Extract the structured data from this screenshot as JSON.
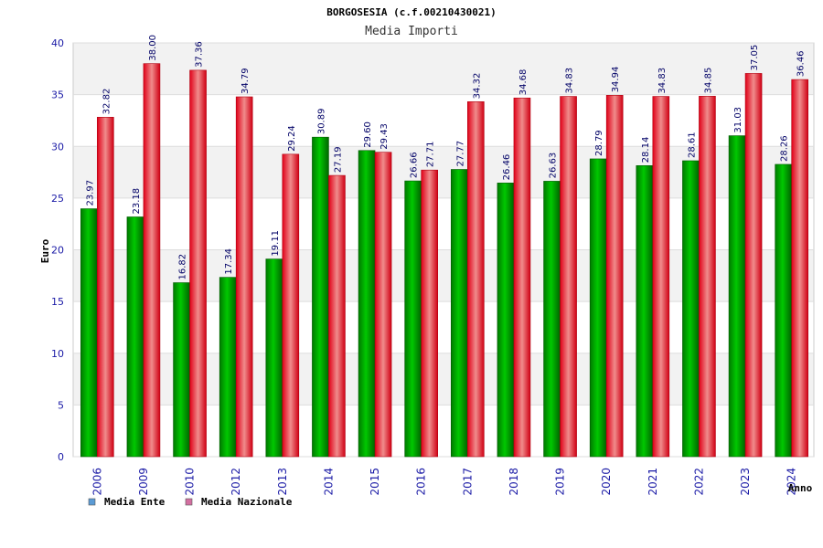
{
  "chart_data": {
    "type": "bar",
    "title": "BORGOSESIA (c.f.00210430021)",
    "subtitle": "Media Importi",
    "xlabel": "Anno",
    "ylabel": "Euro",
    "ylim": [
      0,
      40
    ],
    "yticks": [
      0,
      5,
      10,
      15,
      20,
      25,
      30,
      35,
      40
    ],
    "grid": true,
    "legend_position": "bottom-left",
    "categories": [
      "2006",
      "2009",
      "2010",
      "2012",
      "2013",
      "2014",
      "2015",
      "2016",
      "2017",
      "2018",
      "2019",
      "2020",
      "2021",
      "2022",
      "2023",
      "2024"
    ],
    "series": [
      {
        "name": "Media Ente",
        "color": "#00b000",
        "legend_color": "#5b9bd5",
        "values": [
          23.97,
          23.18,
          16.82,
          17.34,
          19.11,
          30.89,
          29.6,
          26.66,
          27.77,
          26.46,
          26.63,
          28.79,
          28.14,
          28.61,
          31.03,
          28.26
        ],
        "labels": [
          "23.97",
          "23.18",
          "16.82",
          "17.34",
          "19.11",
          "30.89",
          "29.60",
          "26.66",
          "27.77",
          "26.46",
          "26.63",
          "28.79",
          "28.14",
          "28.61",
          "31.03",
          "28.26"
        ]
      },
      {
        "name": "Media Nazionale",
        "color": "#e8001c",
        "legend_color": "#d36fa0",
        "values": [
          32.82,
          38.0,
          37.36,
          34.79,
          29.24,
          27.19,
          29.43,
          27.71,
          34.32,
          34.68,
          34.83,
          34.94,
          34.83,
          34.85,
          37.05,
          36.46
        ],
        "labels": [
          "32.82",
          "38.00",
          "37.36",
          "34.79",
          "29.24",
          "27.19",
          "29.43",
          "27.71",
          "34.32",
          "34.68",
          "34.83",
          "34.94",
          "34.83",
          "34.85",
          "37.05",
          "36.46"
        ]
      }
    ]
  }
}
